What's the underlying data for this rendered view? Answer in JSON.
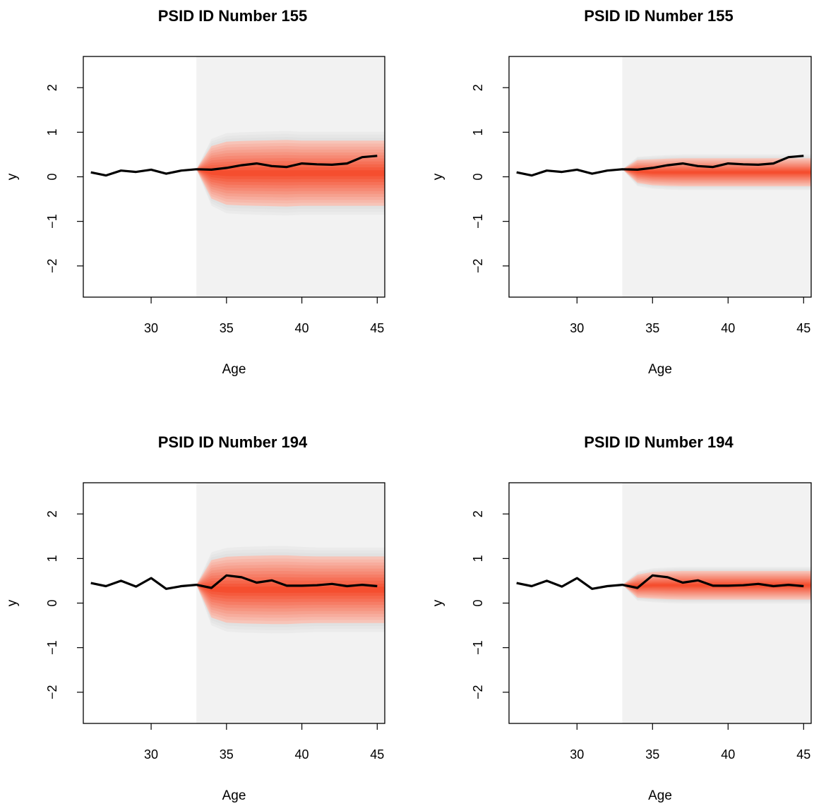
{
  "chart_data": [
    {
      "type": "line",
      "title": "PSID ID Number  155",
      "xlabel": "Age",
      "ylabel": "y",
      "xlim": [
        25.5,
        45.5
      ],
      "ylim": [
        -2.7,
        2.7
      ],
      "xticks": [
        30,
        35,
        40,
        45
      ],
      "yticks": [
        -2,
        -1,
        0,
        1,
        2
      ],
      "forecast_start": 33,
      "forecast_region_color": "#f2f2f2",
      "fan_color": "#f54e2f",
      "fan_outer_color": "#e3e3e3",
      "series": [
        {
          "x": [
            26,
            27,
            28,
            29,
            30,
            31,
            32,
            33,
            34,
            35,
            36,
            37,
            38,
            39,
            40,
            41,
            42,
            43,
            44,
            45
          ],
          "values": [
            0.1,
            0.03,
            0.14,
            0.11,
            0.16,
            0.07,
            0.14,
            0.17,
            0.16,
            0.2,
            0.26,
            0.3,
            0.24,
            0.22,
            0.3,
            0.28,
            0.27,
            0.3,
            0.44,
            0.47
          ]
        }
      ],
      "fan": {
        "x": [
          33,
          34,
          35,
          36,
          37,
          38,
          39,
          40,
          41,
          42,
          43,
          44,
          45
        ],
        "median": [
          0.17,
          0.1,
          0.08,
          0.08,
          0.08,
          0.08,
          0.08,
          0.08,
          0.08,
          0.08,
          0.08,
          0.08,
          0.08
        ],
        "halfwidth": [
          0.0,
          0.75,
          0.9,
          0.92,
          0.93,
          0.94,
          0.95,
          0.93,
          0.93,
          0.93,
          0.93,
          0.93,
          0.93
        ]
      }
    },
    {
      "type": "line",
      "title": "PSID ID Number  155",
      "xlabel": "Age",
      "ylabel": "y",
      "xlim": [
        25.5,
        45.5
      ],
      "ylim": [
        -2.7,
        2.7
      ],
      "xticks": [
        30,
        35,
        40,
        45
      ],
      "yticks": [
        -2,
        -1,
        0,
        1,
        2
      ],
      "forecast_start": 33,
      "forecast_region_color": "#f2f2f2",
      "fan_color": "#f54e2f",
      "fan_outer_color": "#e3e3e3",
      "series": [
        {
          "x": [
            26,
            27,
            28,
            29,
            30,
            31,
            32,
            33,
            34,
            35,
            36,
            37,
            38,
            39,
            40,
            41,
            42,
            43,
            44,
            45
          ],
          "values": [
            0.1,
            0.03,
            0.14,
            0.11,
            0.16,
            0.07,
            0.14,
            0.17,
            0.16,
            0.2,
            0.26,
            0.3,
            0.24,
            0.22,
            0.3,
            0.28,
            0.27,
            0.3,
            0.44,
            0.47
          ]
        }
      ],
      "fan": {
        "x": [
          33,
          34,
          35,
          36,
          37,
          38,
          39,
          40,
          41,
          42,
          43,
          44,
          45
        ],
        "median": [
          0.17,
          0.12,
          0.1,
          0.1,
          0.1,
          0.1,
          0.1,
          0.1,
          0.1,
          0.1,
          0.1,
          0.1,
          0.1
        ],
        "halfwidth": [
          0.0,
          0.33,
          0.37,
          0.39,
          0.4,
          0.4,
          0.4,
          0.4,
          0.4,
          0.4,
          0.4,
          0.4,
          0.4
        ]
      }
    },
    {
      "type": "line",
      "title": "PSID ID Number  194",
      "xlabel": "Age",
      "ylabel": "y",
      "xlim": [
        25.5,
        45.5
      ],
      "ylim": [
        -2.7,
        2.7
      ],
      "xticks": [
        30,
        35,
        40,
        45
      ],
      "yticks": [
        -2,
        -1,
        0,
        1,
        2
      ],
      "forecast_start": 33,
      "forecast_region_color": "#f2f2f2",
      "fan_color": "#f54e2f",
      "fan_outer_color": "#e3e3e3",
      "series": [
        {
          "x": [
            26,
            27,
            28,
            29,
            30,
            31,
            32,
            33,
            34,
            35,
            36,
            37,
            38,
            39,
            40,
            41,
            42,
            43,
            44,
            45
          ],
          "values": [
            0.45,
            0.38,
            0.5,
            0.37,
            0.56,
            0.32,
            0.38,
            0.41,
            0.34,
            0.62,
            0.58,
            0.46,
            0.51,
            0.39,
            0.39,
            0.4,
            0.43,
            0.38,
            0.41,
            0.38
          ]
        }
      ],
      "fan": {
        "x": [
          33,
          34,
          35,
          36,
          37,
          38,
          39,
          40,
          41,
          42,
          43,
          44,
          45
        ],
        "median": [
          0.41,
          0.32,
          0.3,
          0.3,
          0.3,
          0.3,
          0.3,
          0.3,
          0.3,
          0.3,
          0.3,
          0.3,
          0.3
        ],
        "halfwidth": [
          0.0,
          0.82,
          0.94,
          0.96,
          0.97,
          0.98,
          0.98,
          0.96,
          0.95,
          0.95,
          0.95,
          0.95,
          0.95
        ]
      }
    },
    {
      "type": "line",
      "title": "PSID ID Number  194",
      "xlabel": "Age",
      "ylabel": "y",
      "xlim": [
        25.5,
        45.5
      ],
      "ylim": [
        -2.7,
        2.7
      ],
      "xticks": [
        30,
        35,
        40,
        45
      ],
      "yticks": [
        -2,
        -1,
        0,
        1,
        2
      ],
      "forecast_start": 33,
      "forecast_region_color": "#f2f2f2",
      "fan_color": "#f54e2f",
      "fan_outer_color": "#e3e3e3",
      "series": [
        {
          "x": [
            26,
            27,
            28,
            29,
            30,
            31,
            32,
            33,
            34,
            35,
            36,
            37,
            38,
            39,
            40,
            41,
            42,
            43,
            44,
            45
          ],
          "values": [
            0.45,
            0.38,
            0.5,
            0.37,
            0.56,
            0.32,
            0.38,
            0.41,
            0.34,
            0.62,
            0.58,
            0.46,
            0.51,
            0.39,
            0.39,
            0.4,
            0.43,
            0.38,
            0.41,
            0.38
          ]
        }
      ],
      "fan": {
        "x": [
          33,
          34,
          35,
          36,
          37,
          38,
          39,
          40,
          41,
          42,
          43,
          44,
          45
        ],
        "median": [
          0.41,
          0.38,
          0.4,
          0.4,
          0.4,
          0.4,
          0.4,
          0.4,
          0.4,
          0.4,
          0.4,
          0.4,
          0.4
        ],
        "halfwidth": [
          0.0,
          0.33,
          0.38,
          0.4,
          0.41,
          0.41,
          0.41,
          0.41,
          0.41,
          0.41,
          0.41,
          0.41,
          0.41
        ]
      }
    }
  ]
}
